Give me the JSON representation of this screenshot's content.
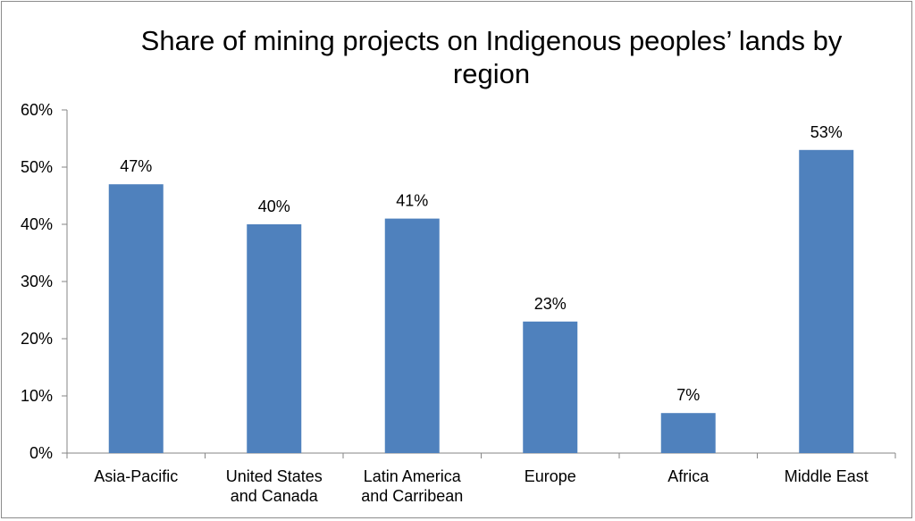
{
  "chart_data": {
    "type": "bar",
    "title_lines": [
      "Share of mining projects on Indigenous peoples’ lands by",
      "region"
    ],
    "categories": [
      [
        "Asia-Pacific"
      ],
      [
        "United States",
        "and Canada"
      ],
      [
        "Latin America",
        "and Carribean"
      ],
      [
        "Europe"
      ],
      [
        "Africa"
      ],
      [
        "Middle East"
      ]
    ],
    "values": [
      47,
      40,
      41,
      23,
      7,
      53
    ],
    "data_labels": [
      "47%",
      "40%",
      "41%",
      "23%",
      "7%",
      "53%"
    ],
    "ylim": [
      0,
      60
    ],
    "yticks": [
      0,
      10,
      20,
      30,
      40,
      50,
      60
    ],
    "ytick_labels": [
      "0%",
      "10%",
      "20%",
      "30%",
      "40%",
      "50%",
      "60%"
    ],
    "grid": false,
    "legend": "none",
    "bar_color": "#4f81bd",
    "xlabel": "",
    "ylabel": ""
  }
}
